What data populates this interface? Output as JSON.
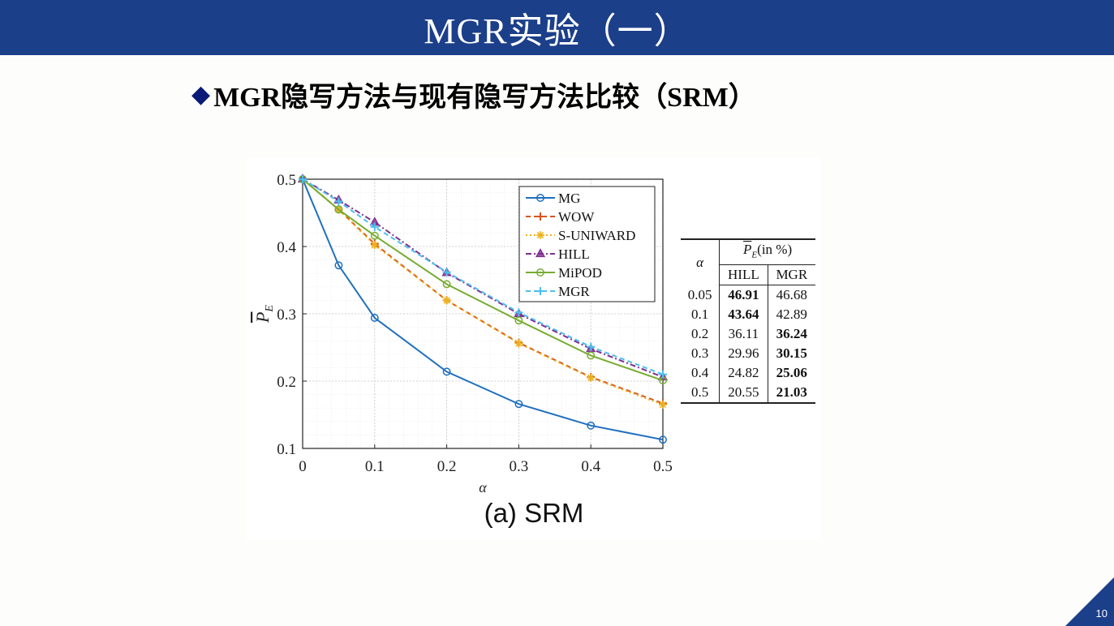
{
  "slide": {
    "title": "MGR实验（一）",
    "subtitle_bullet": "◆",
    "subtitle": "MGR隐写方法与现有隐写方法比较（SRM）",
    "page_number": "10",
    "colors": {
      "title_bar": "#1c3f8a",
      "bullet": "#0a1a78"
    }
  },
  "chart_data": {
    "type": "line",
    "caption": "(a) SRM",
    "xlabel": "α",
    "ylabel": "P_E",
    "x": [
      0,
      0.05,
      0.1,
      0.2,
      0.3,
      0.4,
      0.5
    ],
    "xticks": [
      "0",
      "0.1",
      "0.2",
      "0.3",
      "0.4",
      "0.5"
    ],
    "yticks": [
      "0.1",
      "0.2",
      "0.3",
      "0.4",
      "0.5"
    ],
    "xlim": [
      0,
      0.5
    ],
    "ylim": [
      0.1,
      0.5
    ],
    "grid": true,
    "legend_position": "top-right",
    "series": [
      {
        "name": "MG",
        "color": "#1f6fbf",
        "dash": "",
        "marker": "circle",
        "values": [
          0.5,
          0.372,
          0.294,
          0.214,
          0.166,
          0.134,
          0.113
        ]
      },
      {
        "name": "WOW",
        "color": "#d9531e",
        "dash": "6,4",
        "marker": "plus",
        "values": [
          0.5,
          0.455,
          0.404,
          0.32,
          0.257,
          0.206,
          0.167
        ]
      },
      {
        "name": "S-UNIWARD",
        "color": "#edb120",
        "dash": "2,3",
        "marker": "asterisk",
        "values": [
          0.5,
          0.455,
          0.402,
          0.32,
          0.256,
          0.205,
          0.165
        ]
      },
      {
        "name": "HILL",
        "color": "#7e2f8e",
        "dash": "7,3,2,3",
        "marker": "triangle",
        "values": [
          0.5,
          0.469,
          0.436,
          0.361,
          0.3,
          0.248,
          0.206
        ]
      },
      {
        "name": "MiPOD",
        "color": "#77ac30",
        "dash": "",
        "marker": "circle",
        "values": [
          0.5,
          0.455,
          0.416,
          0.344,
          0.29,
          0.238,
          0.201
        ]
      },
      {
        "name": "MGR",
        "color": "#4dbeee",
        "dash": "6,4",
        "marker": "plus",
        "values": [
          0.5,
          0.467,
          0.429,
          0.362,
          0.302,
          0.251,
          0.21
        ]
      }
    ],
    "table": {
      "header_alpha": "α",
      "header_pe": "(in %)",
      "header_pe_symbol": "P",
      "header_pe_sub": "E",
      "columns": [
        "HILL",
        "MGR"
      ],
      "rows": [
        {
          "alpha": "0.05",
          "hill": "46.91",
          "mgr": "46.68",
          "bold": "hill"
        },
        {
          "alpha": "0.1",
          "hill": "43.64",
          "mgr": "42.89",
          "bold": "hill"
        },
        {
          "alpha": "0.2",
          "hill": "36.11",
          "mgr": "36.24",
          "bold": "mgr"
        },
        {
          "alpha": "0.3",
          "hill": "29.96",
          "mgr": "30.15",
          "bold": "mgr"
        },
        {
          "alpha": "0.4",
          "hill": "24.82",
          "mgr": "25.06",
          "bold": "mgr"
        },
        {
          "alpha": "0.5",
          "hill": "20.55",
          "mgr": "21.03",
          "bold": "mgr"
        }
      ]
    }
  }
}
